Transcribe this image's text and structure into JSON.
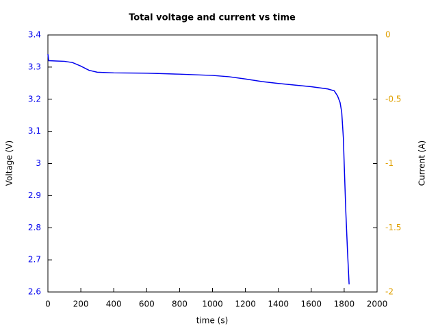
{
  "chart_data": {
    "type": "line",
    "title": "Total voltage and current vs time",
    "xlabel": "time (s)",
    "ylabel": "Voltage (V)",
    "y2label": "Current (A)",
    "x": [
      0,
      5,
      50,
      100,
      150,
      200,
      250,
      300,
      400,
      600,
      800,
      1000,
      1100,
      1200,
      1300,
      1400,
      1500,
      1600,
      1700,
      1740,
      1760,
      1775,
      1785,
      1795,
      1800,
      1810,
      1820,
      1830
    ],
    "series": [
      {
        "color": "#0000ee",
        "values": [
          3.34,
          3.32,
          3.319,
          3.318,
          3.314,
          3.303,
          3.29,
          3.284,
          3.282,
          3.281,
          3.278,
          3.274,
          3.27,
          3.263,
          3.255,
          3.249,
          3.244,
          3.239,
          3.232,
          3.226,
          3.21,
          3.19,
          3.16,
          3.08,
          3.0,
          2.85,
          2.73,
          2.624
        ]
      }
    ],
    "xlim": [
      0,
      2000
    ],
    "xticks": [
      0,
      200,
      400,
      600,
      800,
      1000,
      1200,
      1400,
      1600,
      1800,
      2000
    ],
    "ylim": [
      2.6,
      3.4
    ],
    "yticks": [
      2.6,
      2.7,
      2.8,
      2.9,
      3,
      3.1,
      3.2,
      3.3,
      3.4
    ],
    "y2lim": [
      -2,
      0
    ],
    "y2ticks": [
      -2,
      -1.5,
      -1,
      -0.5,
      0
    ],
    "ycolor": "#0000ee",
    "y2color": "#e0a000",
    "grid": false
  }
}
